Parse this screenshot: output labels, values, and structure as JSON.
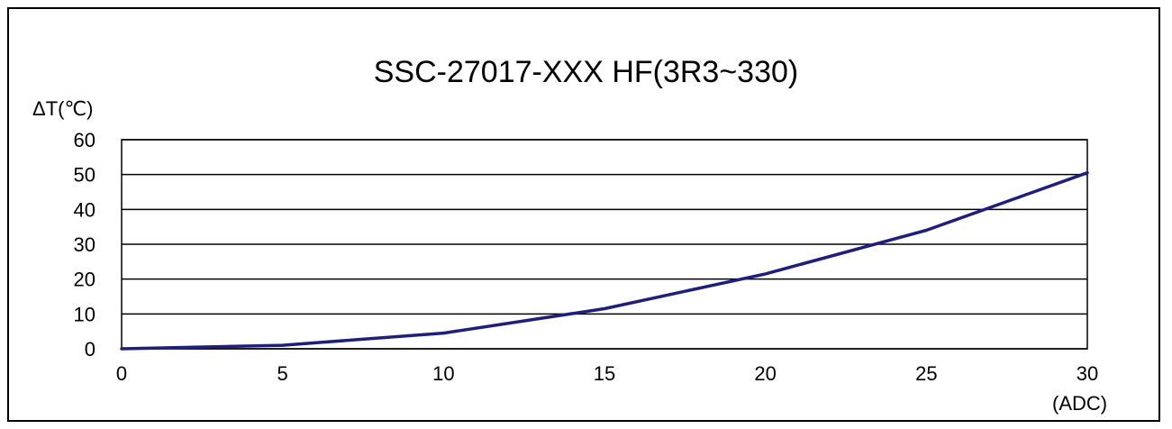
{
  "chart_data": {
    "type": "line",
    "title": "SSC-27017-XXX HF(3R3~330)",
    "ylabel": "ΔT(℃)",
    "xlabel": "(ADC)",
    "xlim": [
      0,
      30
    ],
    "ylim": [
      0,
      60
    ],
    "x_ticks": [
      "0",
      "5",
      "10",
      "15",
      "20",
      "25",
      "30"
    ],
    "y_ticks": [
      "0",
      "10",
      "20",
      "30",
      "40",
      "50",
      "60"
    ],
    "grid": "horizontal",
    "legend": "none",
    "series": [
      {
        "color": "#1f1f7a",
        "x": [
          0,
          5,
          10,
          15,
          20,
          25,
          30
        ],
        "y": [
          0,
          1,
          4.5,
          11.5,
          21.5,
          34,
          50.5
        ]
      }
    ]
  }
}
